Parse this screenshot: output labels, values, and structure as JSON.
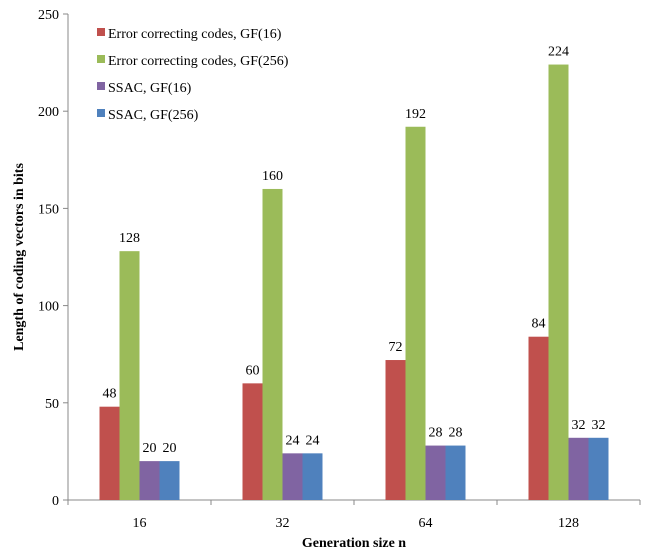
{
  "chart_data": {
    "type": "bar",
    "title": "",
    "xlabel": "Generation size n",
    "ylabel": "Length of coding vectors in bits",
    "categories": [
      "16",
      "32",
      "64",
      "128"
    ],
    "ylim": [
      0,
      250
    ],
    "yticks": [
      0,
      50,
      100,
      150,
      200,
      250
    ],
    "grid": false,
    "legend_position": "top-left",
    "series": [
      {
        "name": "Error correcting codes, GF(16)",
        "color": "#c0504d",
        "values": [
          48,
          60,
          72,
          84
        ]
      },
      {
        "name": "Error correcting codes, GF(256)",
        "color": "#9bbb59",
        "values": [
          128,
          160,
          192,
          224
        ]
      },
      {
        "name": "SSAC, GF(16)",
        "color": "#8064a2",
        "values": [
          20,
          24,
          28,
          32
        ]
      },
      {
        "name": "SSAC, GF(256)",
        "color": "#4f81bd",
        "values": [
          20,
          24,
          28,
          32
        ]
      }
    ]
  }
}
